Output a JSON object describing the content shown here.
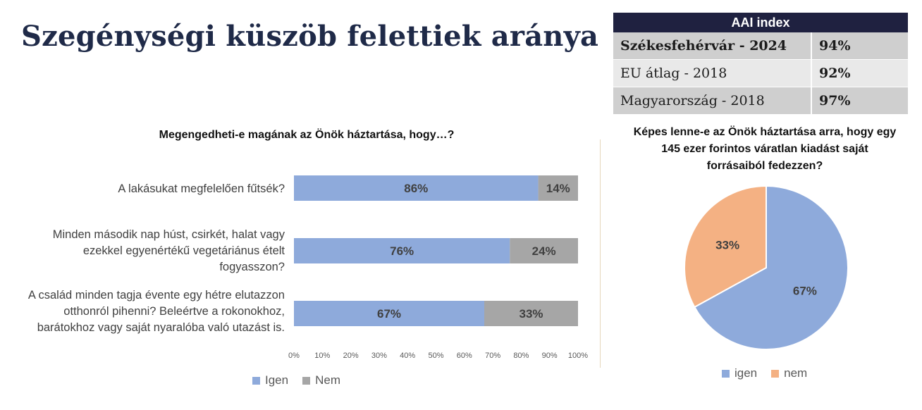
{
  "page": {
    "title": "Szegénységi küszöb felettiek aránya"
  },
  "aai_table": {
    "header": "AAI index",
    "rows": [
      {
        "label": "Székesfehérvár - 2024",
        "value": "94%"
      },
      {
        "label": "EU átlag - 2018",
        "value": "92%"
      },
      {
        "label": "Magyarország - 2018",
        "value": "97%"
      }
    ]
  },
  "chart_data": [
    {
      "type": "bar",
      "orientation": "horizontal",
      "stacked": true,
      "title": "Megengedheti-e magának az Önök háztartása, hogy…?",
      "categories": [
        "A lakásukat megfelelően fűtsék?",
        "Minden második nap húst, csirkét, halat vagy ezekkel egyenértékű vegetáriánus ételt fogyasszon?",
        "A család minden tagja évente egy hétre elutazzon otthonról pihenni? Beleértve a rokonokhoz, barátokhoz vagy saját nyaralóba való utazást is."
      ],
      "category_lines": [
        [
          "A lakásukat megfelelően fűtsék?"
        ],
        [
          "Minden második nap húst, csirkét, halat vagy",
          "ezekkel egyenértékű vegetáriánus ételt",
          "fogyasszon?"
        ],
        [
          "A család minden tagja évente egy hétre elutazzon",
          "otthonról pihenni? Beleértve a rokonokhoz,",
          "barátokhoz vagy saját nyaralóba való utazást is."
        ]
      ],
      "series": [
        {
          "name": "Igen",
          "values": [
            86,
            76,
            67
          ],
          "labels": [
            "86%",
            "76%",
            "67%"
          ],
          "color": "#8eaadb"
        },
        {
          "name": "Nem",
          "values": [
            14,
            24,
            33
          ],
          "labels": [
            "14%",
            "24%",
            "33%"
          ],
          "color": "#a6a6a6"
        }
      ],
      "xlim": [
        0,
        100
      ],
      "xticks": [
        "0%",
        "10%",
        "20%",
        "30%",
        "40%",
        "50%",
        "60%",
        "70%",
        "80%",
        "90%",
        "100%"
      ],
      "legend_position": "bottom"
    },
    {
      "type": "pie",
      "title": "Képes lenne-e az Önök háztartása arra, hogy egy 145 ezer forintos váratlan kiadást saját forrásaiból fedezzen?",
      "title_lines": [
        "Képes lenne-e az Önök háztartása arra, hogy egy",
        "145 ezer forintos váratlan kiadást saját",
        "forrásaiból fedezzen?"
      ],
      "slices": [
        {
          "name": "igen",
          "value": 67,
          "label": "67%",
          "color": "#8eaadb"
        },
        {
          "name": "nem",
          "value": 33,
          "label": "33%",
          "color": "#f4b183"
        }
      ],
      "legend_position": "bottom"
    }
  ]
}
